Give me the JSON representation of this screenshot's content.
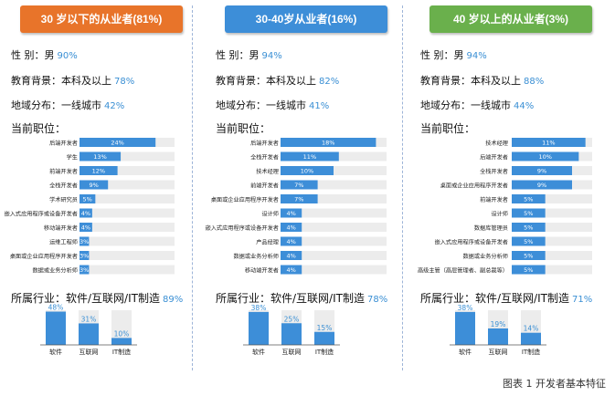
{
  "labels": {
    "gender": "性 别：",
    "education": "教育背景：",
    "region": "地域分布：",
    "position": "当前职位：",
    "industry": "所属行业："
  },
  "colors": {
    "bar": "#3d8ed8",
    "track": "#ececec",
    "value_text": "#3a8fd4"
  },
  "footer": "图表 1 开发者基本特征",
  "panels": [
    {
      "title": "30 岁以下的从业者(81%)",
      "title_color": "#e8742a",
      "gender": {
        "text": "男",
        "pct": "90%"
      },
      "education": {
        "text": "本科及以上",
        "pct": "78%"
      },
      "region": {
        "text": "一线城市",
        "pct": "42%"
      },
      "industry": {
        "text": "软件/互联网/IT制造",
        "pct": "89%"
      }
    },
    {
      "title": "30-40岁从业者(16%)",
      "title_color": "#3d8ed8",
      "gender": {
        "text": "男",
        "pct": "94%"
      },
      "education": {
        "text": "本科及以上",
        "pct": "82%"
      },
      "region": {
        "text": "一线城市",
        "pct": "41%"
      },
      "industry": {
        "text": "软件/互联网/IT制造",
        "pct": "78%"
      }
    },
    {
      "title": "40 岁以上的从业者(3%)",
      "title_color": "#6ab04c",
      "gender": {
        "text": "男",
        "pct": "94%"
      },
      "education": {
        "text": "本科及以上",
        "pct": "88%"
      },
      "region": {
        "text": "一线城市",
        "pct": "44%"
      },
      "industry": {
        "text": "软件/互联网/IT制造",
        "pct": "71%"
      }
    }
  ],
  "chart_data": [
    {
      "type": "bar",
      "orientation": "horizontal",
      "title": "当前职位：",
      "categories": [
        "后端开发者",
        "学生",
        "前端开发者",
        "全栈开发者",
        "学术研究员",
        "嵌入式应用程序或设备开发者",
        "移动端开发者",
        "运维工程师",
        "桌面或企业应用程序开发者",
        "数据或业务分析师"
      ],
      "values": [
        24,
        13,
        12,
        9,
        5,
        4,
        4,
        3,
        3,
        3
      ],
      "unit": "%",
      "xlim": [
        0,
        30
      ]
    },
    {
      "type": "bar",
      "orientation": "vertical",
      "title": "所属行业：",
      "categories": [
        "软件",
        "互联网",
        "IT制造"
      ],
      "values": [
        48,
        31,
        10
      ],
      "unit": "%",
      "ylim": [
        0,
        50
      ]
    },
    {
      "type": "bar",
      "orientation": "horizontal",
      "title": "当前职位：",
      "categories": [
        "后端开发者",
        "全栈开发者",
        "技术经理",
        "前端开发者",
        "桌面或企业应用程序开发者",
        "设计师",
        "嵌入式应用程序或设备开发者",
        "产品经理",
        "数据或业务分析师",
        "移动端开发者"
      ],
      "values": [
        18,
        11,
        10,
        7,
        7,
        4,
        4,
        4,
        4,
        4
      ],
      "unit": "%",
      "xlim": [
        0,
        20
      ]
    },
    {
      "type": "bar",
      "orientation": "vertical",
      "title": "所属行业：",
      "categories": [
        "软件",
        "互联网",
        "IT制造"
      ],
      "values": [
        38,
        25,
        15
      ],
      "unit": "%",
      "ylim": [
        0,
        40
      ]
    },
    {
      "type": "bar",
      "orientation": "horizontal",
      "title": "当前职位：",
      "categories": [
        "技术经理",
        "后端开发者",
        "全栈开发者",
        "桌面或企业应用程序开发者",
        "前端开发者",
        "设计师",
        "数据库管理员",
        "嵌入式应用程序或设备开发者",
        "数据或业务分析师",
        "高级主管（高层管理者、副总裁等）"
      ],
      "values": [
        11,
        10,
        9,
        9,
        5,
        5,
        5,
        5,
        5,
        5
      ],
      "unit": "%",
      "xlim": [
        0,
        12
      ]
    },
    {
      "type": "bar",
      "orientation": "vertical",
      "title": "所属行业：",
      "categories": [
        "软件",
        "互联网",
        "IT制造"
      ],
      "values": [
        38,
        19,
        14
      ],
      "unit": "%",
      "ylim": [
        0,
        40
      ]
    }
  ]
}
